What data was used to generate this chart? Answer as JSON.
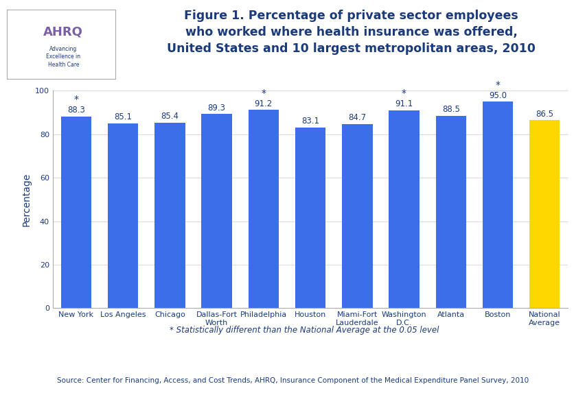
{
  "categories": [
    "New York",
    "Los Angeles",
    "Chicago",
    "Dallas-Fort\nWorth",
    "Philadelphia",
    "Houston",
    "Miami-Fort\nLauderdale",
    "Washington\nD.C.",
    "Atlanta",
    "Boston",
    "National\nAverage"
  ],
  "values": [
    88.3,
    85.1,
    85.4,
    89.3,
    91.2,
    83.1,
    84.7,
    91.1,
    88.5,
    95.0,
    86.5
  ],
  "bar_colors": [
    "#3B6EE8",
    "#3B6EE8",
    "#3B6EE8",
    "#3B6EE8",
    "#3B6EE8",
    "#3B6EE8",
    "#3B6EE8",
    "#3B6EE8",
    "#3B6EE8",
    "#3B6EE8",
    "#FFD700"
  ],
  "statistically_different": [
    true,
    false,
    false,
    false,
    true,
    false,
    false,
    true,
    false,
    true,
    false
  ],
  "ylabel": "Percentage",
  "ylim": [
    0,
    110
  ],
  "yticks": [
    0,
    20,
    40,
    60,
    80,
    100
  ],
  "title_line1": "Figure 1. Percentage of private sector employees",
  "title_line2": "who worked where health insurance was offered,",
  "title_line3": "United States and 10 largest metropolitan areas, 2010",
  "title_color": "#1A3A7A",
  "title_fontsize": 12.5,
  "footnote": "* Statistically different than the National Average at the 0.05 level",
  "source": "Source: Center for Financing, Access, and Cost Trends, AHRQ, Insurance Component of the Medical Expenditure Panel Survey, 2010",
  "bar_label_color": "#1A3A7A",
  "bar_label_fontsize": 8.5,
  "axis_label_color": "#1A3A7A",
  "tick_label_fontsize": 8,
  "ylabel_fontsize": 10,
  "separator_color": "#00008B",
  "background_color": "#FFFFFF",
  "plot_bg_color": "#FFFFFF",
  "source_color": "#1A3A7A",
  "footnote_color": "#1A3A7A",
  "outer_border_color": "#00008B"
}
